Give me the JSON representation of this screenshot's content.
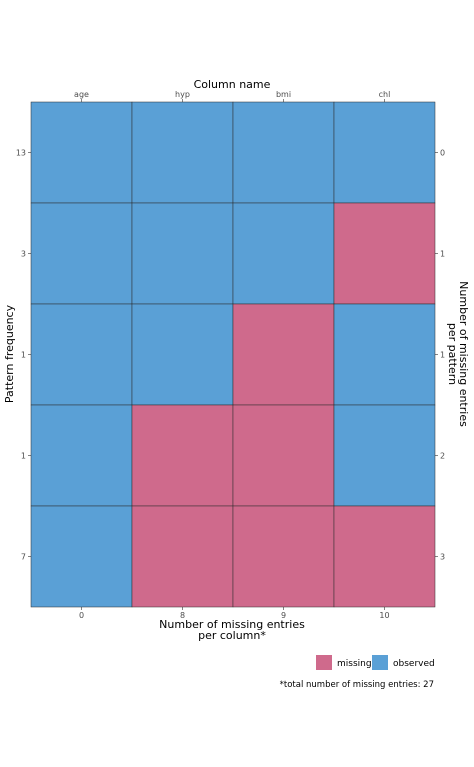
{
  "chart_data": {
    "type": "heatmap",
    "top_axis_title": "Column name",
    "columns": [
      "age",
      "hyp",
      "bmi",
      "chl"
    ],
    "missing_per_column": [
      "0",
      "8",
      "9",
      "10"
    ],
    "bottom_axis_title_line1": "Number of missing entries",
    "bottom_axis_title_line2": "per column*",
    "left_axis_title": "Pattern frequency",
    "right_axis_title_line1": "Number of missing entries",
    "right_axis_title_line2": "per pattern",
    "pattern_frequency": [
      "13",
      "3",
      "1",
      "1",
      "7"
    ],
    "missing_per_pattern": [
      "0",
      "1",
      "1",
      "2",
      "3"
    ],
    "patterns": [
      [
        "observed",
        "observed",
        "observed",
        "observed"
      ],
      [
        "observed",
        "observed",
        "observed",
        "missing"
      ],
      [
        "observed",
        "observed",
        "missing",
        "observed"
      ],
      [
        "observed",
        "missing",
        "missing",
        "observed"
      ],
      [
        "observed",
        "missing",
        "missing",
        "missing"
      ]
    ],
    "legend": [
      {
        "label": "missing",
        "color": "#cf6a8c"
      },
      {
        "label": "observed",
        "color": "#5aa0d6"
      }
    ],
    "footnote": "*total number of missing entries: 27"
  }
}
